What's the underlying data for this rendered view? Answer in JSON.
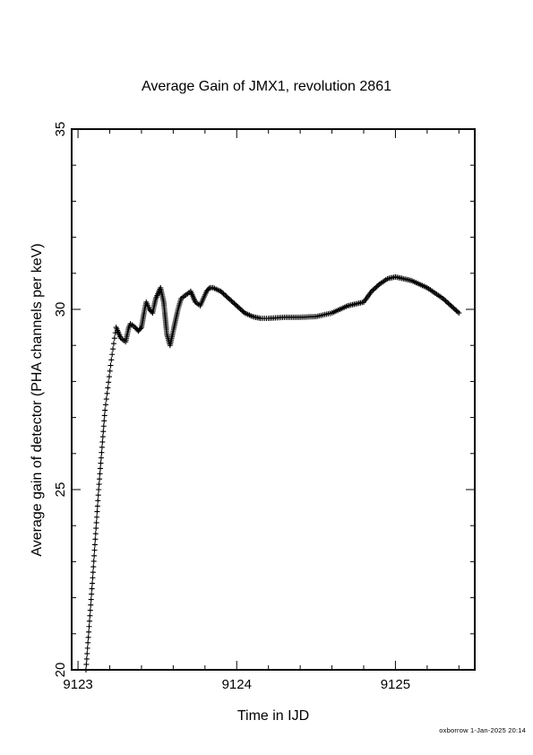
{
  "footer": "oxborrow  1-Jan-2025 20:14",
  "chart_data": {
    "type": "scatter",
    "title": "Average Gain of JMX1, revolution 2861",
    "xlabel": "Time in IJD",
    "ylabel": "Average gain of detector (PHA channels per keV)",
    "xlim": [
      9122.96,
      9125.5
    ],
    "ylim": [
      20,
      35
    ],
    "xticks": [
      9123,
      9124,
      9125
    ],
    "yticks": [
      20,
      25,
      30,
      35
    ],
    "marker": "+",
    "color": "#000000",
    "x": [
      9123.05,
      9123.09,
      9123.13,
      9123.17,
      9123.21,
      9123.24,
      9123.27,
      9123.3,
      9123.32,
      9123.33,
      9123.36,
      9123.38,
      9123.4,
      9123.42,
      9123.43,
      9123.45,
      9123.47,
      9123.49,
      9123.52,
      9123.54,
      9123.56,
      9123.58,
      9123.6,
      9123.63,
      9123.65,
      9123.68,
      9123.71,
      9123.74,
      9123.77,
      9123.79,
      9123.81,
      9123.83,
      9123.85,
      9123.9,
      9123.95,
      9124.0,
      9124.05,
      9124.1,
      9124.15,
      9124.2,
      9124.3,
      9124.4,
      9124.5,
      9124.6,
      9124.7,
      9124.75,
      9124.8,
      9124.85,
      9124.9,
      9124.95,
      9125.0,
      9125.05,
      9125.1,
      9125.15,
      9125.2,
      9125.25,
      9125.3,
      9125.35,
      9125.4
    ],
    "y": [
      20.0,
      22.4,
      25.0,
      27.2,
      28.6,
      29.5,
      29.2,
      29.1,
      29.5,
      29.6,
      29.5,
      29.4,
      29.5,
      30.0,
      30.2,
      30.0,
      29.9,
      30.3,
      30.6,
      30.2,
      29.3,
      29.0,
      29.4,
      30.0,
      30.3,
      30.4,
      30.5,
      30.2,
      30.1,
      30.3,
      30.5,
      30.6,
      30.6,
      30.5,
      30.3,
      30.1,
      29.9,
      29.8,
      29.75,
      29.75,
      29.78,
      29.78,
      29.8,
      29.9,
      30.1,
      30.15,
      30.2,
      30.5,
      30.7,
      30.85,
      30.9,
      30.85,
      30.8,
      30.7,
      30.6,
      30.45,
      30.3,
      30.1,
      29.9
    ]
  }
}
